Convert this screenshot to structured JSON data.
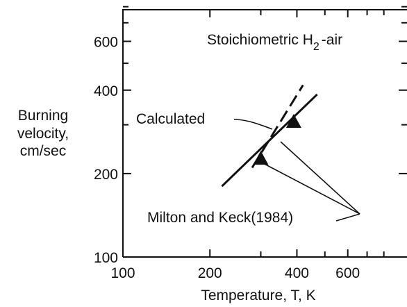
{
  "chart_data": {
    "type": "line",
    "xscale": "log",
    "yscale": "log",
    "xlim": [
      100,
      800
    ],
    "ylim": [
      100,
      800
    ],
    "xlabel": "Temperature, T, K",
    "ylabel": [
      "Burning",
      "velocity,",
      "cm/sec"
    ],
    "xticks": [
      100,
      200,
      400,
      600
    ],
    "xtick_labels": [
      "100",
      "200",
      "400",
      "600"
    ],
    "yticks": [
      100,
      200,
      400,
      600
    ],
    "ytick_labels": [
      "100",
      "200",
      "400",
      "600"
    ],
    "title_annotation": {
      "text": "Stoichiometric H",
      "subscript": "2",
      "suffix": "-air"
    },
    "series": [
      {
        "style": "solid",
        "x": [
          220,
          470
        ],
        "y": [
          180,
          386
        ]
      },
      {
        "style": "dashed",
        "x": [
          280,
          420
        ],
        "y": [
          210,
          417
        ]
      },
      {
        "style": "triangle-markers",
        "x": [
          300,
          390
        ],
        "y": [
          228,
          310
        ]
      }
    ],
    "annotations": [
      {
        "text": "Calculated"
      },
      {
        "text": "Milton and Keck(1984)"
      }
    ],
    "grid": false,
    "legend": "none"
  }
}
